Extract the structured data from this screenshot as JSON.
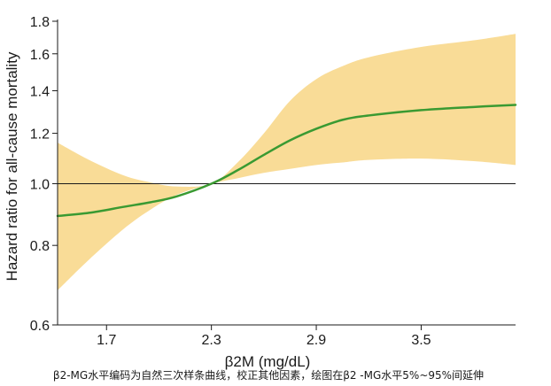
{
  "chart_data": {
    "type": "line",
    "xlabel": "β2M (mg/dL)",
    "ylabel": "Hazard ratio for all-cause mortality",
    "caption": "β2-MG水平编码为自然三次样条曲线，校正其他因素，绘图在β2 -MG水平5%~95%间延伸",
    "xlim": [
      1.42,
      4.04
    ],
    "ylim": [
      0.6,
      1.8
    ],
    "y_scale": "log",
    "x_ticks": [
      "1.7",
      "2.3",
      "2.9",
      "3.5"
    ],
    "y_ticks": [
      "0.6",
      "0.8",
      "1.0",
      "1.2",
      "1.4",
      "1.6",
      "1.8"
    ],
    "reference_line": 1.0,
    "grid": false,
    "colors": {
      "line": "#3a9a32",
      "band": "#f9dc97",
      "axis": "#1a1a1a"
    },
    "series": [
      {
        "x": [
          1.42,
          1.6,
          1.8,
          1.95,
          2.1,
          2.3,
          2.45,
          2.6,
          2.75,
          2.9,
          3.05,
          3.2,
          3.5,
          3.8,
          4.04
        ],
        "y": [
          0.89,
          0.9,
          0.92,
          0.935,
          0.955,
          1.0,
          1.05,
          1.11,
          1.17,
          1.22,
          1.26,
          1.28,
          1.305,
          1.32,
          1.33
        ],
        "lower": [
          0.68,
          0.76,
          0.85,
          0.91,
          0.96,
          1.0,
          1.02,
          1.04,
          1.055,
          1.07,
          1.08,
          1.09,
          1.095,
          1.085,
          1.07
        ],
        "upper": [
          1.16,
          1.09,
          1.03,
          1.005,
          0.99,
          1.0,
          1.08,
          1.2,
          1.35,
          1.46,
          1.53,
          1.58,
          1.64,
          1.68,
          1.72
        ]
      }
    ]
  }
}
